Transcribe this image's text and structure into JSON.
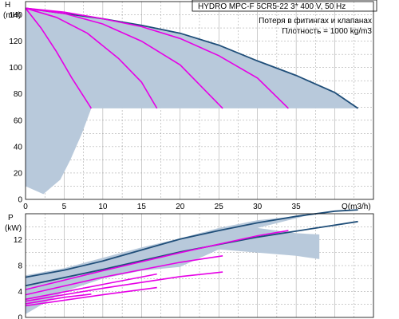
{
  "header": {
    "title": "HYDRO MPC-F 5CR5-22    3* 400 V, 50 Hz",
    "note": "Потеря в фитингах и клапанах",
    "density": "Плотность = 1000 kg/m3"
  },
  "colors": {
    "background": "#ffffff",
    "grid": "#9a9a9a",
    "frame": "#000000",
    "shade": "#b8c9db",
    "max_curve": "#1f4e79",
    "speed_curves": "#e600e6"
  },
  "chart_data": [
    {
      "type": "line",
      "title": "",
      "ylabel_top": "H",
      "ylabel_unit": "(mH)",
      "xlabel": "Q(m3/h)",
      "xlim": [
        0,
        45
      ],
      "ylim": [
        0,
        150
      ],
      "xticks": [
        0,
        5,
        10,
        15,
        20,
        25,
        30,
        35
      ],
      "yticks": [
        0,
        20,
        40,
        60,
        80,
        100,
        120,
        140
      ],
      "grid": true,
      "shaded_region": {
        "upper": [
          [
            0,
            145
          ],
          [
            5,
            141
          ],
          [
            10,
            137
          ],
          [
            15,
            132
          ],
          [
            20,
            126
          ],
          [
            25,
            117
          ],
          [
            30,
            105
          ],
          [
            35,
            94
          ],
          [
            40,
            81
          ],
          [
            43,
            69
          ]
        ],
        "floor": [
          [
            8.5,
            69
          ],
          [
            8.5,
            69
          ],
          [
            43,
            69
          ]
        ],
        "lower_tail": [
          [
            8.5,
            69
          ],
          [
            7.3,
            50
          ],
          [
            5.8,
            30
          ],
          [
            4.5,
            15
          ],
          [
            2.3,
            4
          ],
          [
            0,
            10
          ]
        ]
      },
      "series": [
        {
          "role": "max",
          "x": [
            0,
            5,
            10,
            15,
            20,
            25,
            30,
            35,
            40,
            43
          ],
          "y": [
            145,
            141,
            137,
            132,
            126,
            117,
            105,
            94,
            81,
            69
          ]
        },
        {
          "role": "speed",
          "x": [
            0,
            2,
            4,
            6,
            8.5
          ],
          "y": [
            145,
            130,
            112,
            92,
            69
          ]
        },
        {
          "role": "speed",
          "x": [
            0,
            4,
            8,
            12,
            15,
            17
          ],
          "y": [
            145,
            138,
            126,
            107,
            89,
            69
          ]
        },
        {
          "role": "speed",
          "x": [
            0,
            5,
            10,
            15,
            20,
            25.5
          ],
          "y": [
            145,
            141,
            133,
            120,
            102,
            69
          ]
        },
        {
          "role": "speed",
          "x": [
            0,
            5,
            10,
            15,
            20,
            25,
            30,
            34
          ],
          "y": [
            145,
            142,
            137,
            131,
            122,
            109,
            92,
            69
          ]
        }
      ]
    },
    {
      "type": "line",
      "title": "",
      "ylabel_top": "P",
      "ylabel_unit": "(kW)",
      "xlabel": "",
      "xlim": [
        0,
        45
      ],
      "ylim": [
        0,
        16
      ],
      "yticks": [
        0,
        4,
        8,
        12
      ],
      "grid": true,
      "shaded_region": {
        "upper": [
          [
            0,
            6.5
          ],
          [
            5,
            7.6
          ],
          [
            10,
            9.2
          ],
          [
            15,
            10.8
          ],
          [
            20,
            12.2
          ],
          [
            25,
            13.8
          ],
          [
            30,
            15.0
          ],
          [
            35,
            15.6
          ],
          [
            38,
            16.2
          ]
        ],
        "lower": [
          [
            30,
            13.8
          ],
          [
            35,
            13.0
          ],
          [
            38,
            12.8
          ],
          [
            38,
            9.0
          ],
          [
            35,
            9.5
          ],
          [
            30,
            10.0
          ],
          [
            25,
            10.5
          ],
          [
            20,
            7.8
          ],
          [
            15,
            7.2
          ],
          [
            10,
            6.0
          ],
          [
            5,
            4.0
          ],
          [
            0,
            0.5
          ]
        ]
      },
      "series": [
        {
          "role": "max",
          "x": [
            0,
            5,
            10,
            15,
            20,
            25,
            30,
            35,
            40,
            43
          ],
          "y": [
            6.2,
            7.3,
            8.7,
            10.4,
            12.1,
            13.4,
            14.6,
            15.6,
            16.4,
            16.6
          ]
        },
        {
          "role": "max",
          "x": [
            0,
            10,
            20,
            30,
            43
          ],
          "y": [
            4.9,
            7.4,
            10.1,
            12.4,
            14.8
          ]
        },
        {
          "role": "speed",
          "x": [
            0,
            10,
            20,
            30,
            34
          ],
          "y": [
            4.3,
            7.2,
            10.0,
            12.6,
            13.4
          ]
        },
        {
          "role": "speed",
          "x": [
            0,
            10,
            20,
            25.5
          ],
          "y": [
            3.5,
            6.2,
            8.5,
            9.5
          ]
        },
        {
          "role": "speed",
          "x": [
            0,
            10,
            17
          ],
          "y": [
            2.8,
            5.1,
            6.7
          ]
        },
        {
          "role": "speed",
          "x": [
            0,
            5,
            8.5
          ],
          "y": [
            2.1,
            3.1,
            3.6
          ]
        },
        {
          "role": "speed",
          "x": [
            0,
            10,
            20,
            25.5
          ],
          "y": [
            2.5,
            4.5,
            6.3,
            7.0
          ]
        },
        {
          "role": "speed",
          "x": [
            0,
            10,
            17
          ],
          "y": [
            1.8,
            3.5,
            4.6
          ]
        }
      ]
    }
  ]
}
